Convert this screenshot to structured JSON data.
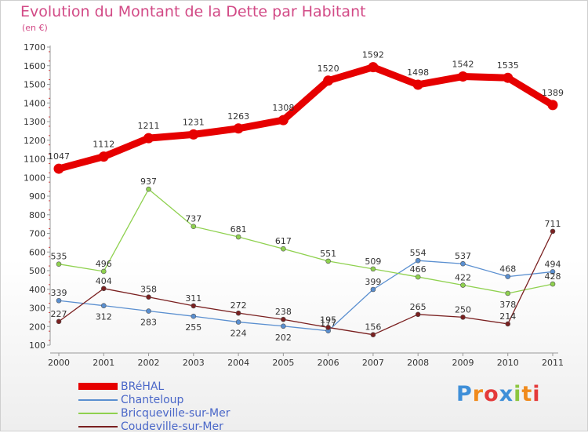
{
  "header": {
    "title": "Evolution du Montant de la Dette par Habitant",
    "subtitle": "(en €)"
  },
  "logo": {
    "text": "Proxiti"
  },
  "colors": {
    "title": "#d24a86",
    "legend_text": "#4a67c8",
    "axis": "#999999"
  },
  "chart_data": {
    "type": "line",
    "title": "Evolution du Montant de la Dette par Habitant",
    "subtitle": "(en €)",
    "xlabel": "",
    "ylabel": "",
    "x": [
      "2000",
      "2001",
      "2002",
      "2003",
      "2004",
      "2005",
      "2006",
      "2007",
      "2008",
      "2009",
      "2010",
      "2011"
    ],
    "ylim": [
      100,
      1700
    ],
    "yticks": [
      100,
      200,
      300,
      400,
      500,
      600,
      700,
      800,
      900,
      1000,
      1100,
      1200,
      1300,
      1400,
      1500,
      1600,
      1700
    ],
    "grid": false,
    "legend_position": "bottom-left",
    "series": [
      {
        "name": "BRéHAL",
        "color": "#e60000",
        "bold": true,
        "values": [
          1047,
          1112,
          1211,
          1231,
          1263,
          1308,
          1520,
          1592,
          1498,
          1542,
          1535,
          1389
        ],
        "label_offsets": [
          -6,
          -6,
          -6,
          -6,
          -6,
          -6,
          -6,
          -6,
          -6,
          -6,
          -6,
          -6
        ]
      },
      {
        "name": "Chanteloup",
        "color": "#5a8fd0",
        "bold": false,
        "values": [
          339,
          312,
          283,
          255,
          224,
          202,
          177,
          399,
          554,
          537,
          468,
          494
        ],
        "label_offsets": [
          -6,
          18,
          18,
          18,
          18,
          18,
          -6,
          -6,
          -6,
          -6,
          -6,
          -6
        ]
      },
      {
        "name": "Bricqueville-sur-Mer",
        "color": "#8fd14f",
        "bold": false,
        "values": [
          535,
          496,
          937,
          737,
          681,
          617,
          551,
          509,
          466,
          422,
          378,
          428
        ],
        "label_offsets": [
          -6,
          -6,
          -6,
          -6,
          -6,
          -6,
          -6,
          -6,
          -6,
          -6,
          18,
          -6
        ]
      },
      {
        "name": "Coudeville-sur-Mer",
        "color": "#7a2020",
        "bold": false,
        "values": [
          227,
          404,
          358,
          311,
          272,
          238,
          195,
          156,
          265,
          250,
          214,
          711
        ],
        "label_offsets": [
          -6,
          -6,
          -6,
          -6,
          -6,
          -6,
          -6,
          -6,
          -6,
          -6,
          -6,
          -6
        ]
      }
    ]
  }
}
